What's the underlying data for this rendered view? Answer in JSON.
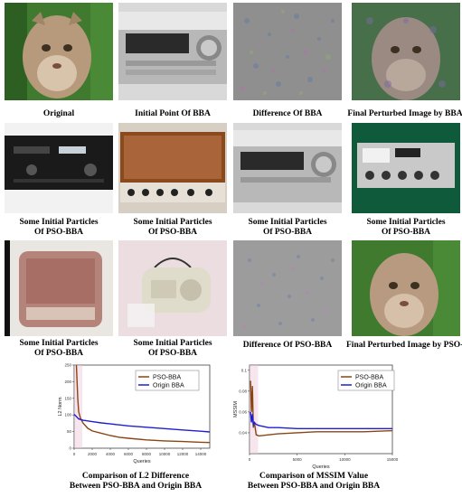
{
  "figure": {
    "row1": [
      {
        "caption": "Original",
        "subject": "cougar photo"
      },
      {
        "caption": "Initial Point Of BBA",
        "subject": "audio receiver photo"
      },
      {
        "caption": "Difference Of BBA",
        "subject": "noise difference map"
      },
      {
        "caption": "Final Perturbed Image by BBA",
        "subject": "perturbed cougar photo"
      }
    ],
    "row2": [
      {
        "caption_l1": "",
        "caption_l2": "",
        "subject": "black stereo unit photo"
      },
      {
        "caption_l1": "Some Initial Particles",
        "caption_l2": "Of PSO-BBA",
        "subject": "vintage wooden receiver photo"
      },
      {
        "caption_l1": "Some Initial Particles",
        "caption_l2": "Of PSO-BBA",
        "subject": "audio receiver photo"
      },
      {
        "caption_l1": "Some Initial Particles",
        "caption_l2": "Of PSO-BBA",
        "subject": "CB radio photo"
      }
    ],
    "row2_first_caption_l1": "Some Initial Particles",
    "row2_first_caption_l2": "Of PSO-BBA",
    "row3": [
      {
        "caption_l1": "Some Initial Particles",
        "caption_l2": "Of PSO-BBA",
        "subject": "retro radio photo"
      },
      {
        "caption_l1": "Some Initial Particles",
        "caption_l2": "Of PSO-BBA",
        "subject": "portable radio photo"
      },
      {
        "caption_l1": "Difference Of PSO-BBA",
        "caption_l2": "",
        "subject": "noise difference map"
      },
      {
        "caption_l1": "Final Perturbed Image by PSO-BBA",
        "caption_l2": "",
        "subject": "perturbed cougar photo"
      }
    ]
  },
  "chart_data": [
    {
      "type": "line",
      "title_l1": "Comparison of L2 Difference",
      "title_l2": "Between PSO-BBA and Origin BBA",
      "xlabel": "Queries",
      "ylabel": "L2 Norm",
      "xlim": [
        0,
        15000
      ],
      "ylim": [
        0,
        250
      ],
      "xticks": [
        "0",
        "2000",
        "4000",
        "6000",
        "8000",
        "10000",
        "12000",
        "14000"
      ],
      "yticks": [
        "0",
        "50",
        "100",
        "150",
        "200",
        "250"
      ],
      "legend_position": "top-right",
      "series": [
        {
          "name": "PSO-BBA",
          "color": "#8B4513",
          "x": [
            250,
            400,
            500,
            700,
            1000,
            1500,
            2000,
            3000,
            4000,
            5000,
            6000,
            8000,
            10000,
            12000,
            14000,
            15000
          ],
          "y": [
            250,
            150,
            110,
            90,
            75,
            60,
            52,
            45,
            38,
            33,
            30,
            25,
            22,
            20,
            18,
            17
          ]
        },
        {
          "name": "Origin BBA",
          "color": "#1f1fd0",
          "x": [
            0,
            250,
            500,
            1000,
            2000,
            3000,
            4000,
            5000,
            6000,
            8000,
            10000,
            12000,
            14000,
            15000
          ],
          "y": [
            102,
            95,
            88,
            84,
            80,
            76,
            73,
            70,
            67,
            63,
            59,
            55,
            51,
            49
          ]
        }
      ]
    },
    {
      "type": "line",
      "title_l1": "Comparison of MSSIM Value",
      "title_l2": "Between PSO-BBA and Origin BBA",
      "xlabel": "Queries",
      "ylabel": "MSSIM",
      "xlim": [
        0,
        15000
      ],
      "ylim": [
        0.02,
        0.105
      ],
      "xticks": [
        "0",
        "5000",
        "10000",
        "15000"
      ],
      "yticks": [
        "0.04",
        "0.06",
        "0.08",
        "0.1"
      ],
      "legend_position": "top-right",
      "series": [
        {
          "name": "PSO-BBA",
          "color": "#8B4513",
          "x": [
            100,
            200,
            300,
            400,
            500,
            700,
            1000,
            2000,
            3000,
            5000,
            7000,
            10000,
            12000,
            15000
          ],
          "y": [
            0.09,
            0.06,
            0.085,
            0.045,
            0.05,
            0.038,
            0.037,
            0.038,
            0.039,
            0.04,
            0.041,
            0.041,
            0.041,
            0.042
          ]
        },
        {
          "name": "Origin BBA",
          "color": "#1f1fd0",
          "x": [
            100,
            200,
            300,
            400,
            500,
            700,
            1000,
            2000,
            3000,
            5000,
            7000,
            10000,
            12000,
            15000
          ],
          "y": [
            0.06,
            0.05,
            0.058,
            0.047,
            0.05,
            0.048,
            0.047,
            0.045,
            0.045,
            0.044,
            0.044,
            0.044,
            0.044,
            0.044
          ]
        }
      ]
    }
  ]
}
